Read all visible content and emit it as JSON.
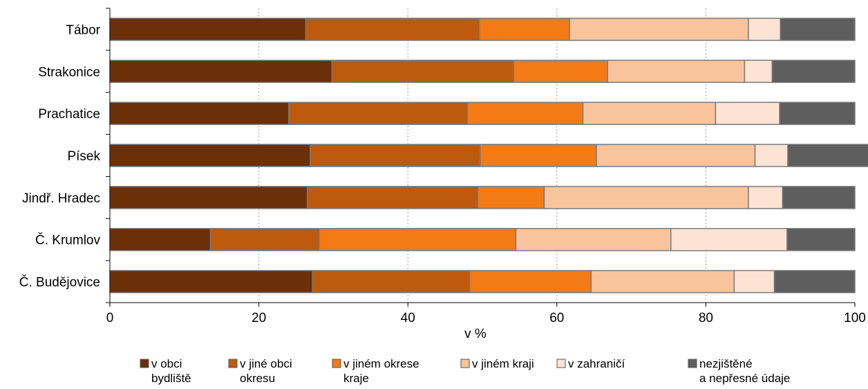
{
  "chart_data": {
    "type": "bar",
    "orientation": "horizontal",
    "stacked": true,
    "percent": true,
    "categories": [
      "Tábor",
      "Strakonice",
      "Prachatice",
      "Písek",
      "Jindř. Hradec",
      "Č. Krumlov",
      "Č. Budějovice"
    ],
    "series": [
      {
        "name": [
          "v obci",
          "bydliště"
        ],
        "color": "#6B2F0A",
        "values": [
          26.3,
          29.8,
          24.0,
          26.9,
          26.5,
          13.5,
          27.2
        ]
      },
      {
        "name": [
          "v jiné obci",
          "okresu"
        ],
        "color": "#BE5A0E",
        "values": [
          23.3,
          24.4,
          24.0,
          22.8,
          22.9,
          14.6,
          21.1
        ]
      },
      {
        "name": [
          "v jiném okrese",
          "kraje"
        ],
        "color": "#F37A14",
        "values": [
          12.1,
          12.6,
          15.5,
          15.6,
          8.9,
          26.4,
          16.3
        ]
      },
      {
        "name": [
          "v jiném kraji"
        ],
        "color": "#F9C49C",
        "values": [
          24.0,
          18.4,
          17.8,
          21.3,
          27.4,
          20.8,
          19.2
        ]
      },
      {
        "name": [
          "v zahraničí"
        ],
        "color": "#FCE3D3",
        "values": [
          4.3,
          3.7,
          8.6,
          4.4,
          4.6,
          15.6,
          5.4
        ]
      },
      {
        "name": [
          "nezjištěné",
          "a nepřesné údaje"
        ],
        "color": "#5E5E5E",
        "values": [
          10.0,
          11.1,
          10.1,
          11.0,
          9.7,
          9.1,
          10.8
        ]
      }
    ],
    "xlabel": "v %",
    "xlim": [
      0,
      100
    ],
    "xticks": [
      0,
      20,
      40,
      60,
      80,
      100
    ],
    "grid": "vertical dotted",
    "legend_position": "bottom"
  }
}
